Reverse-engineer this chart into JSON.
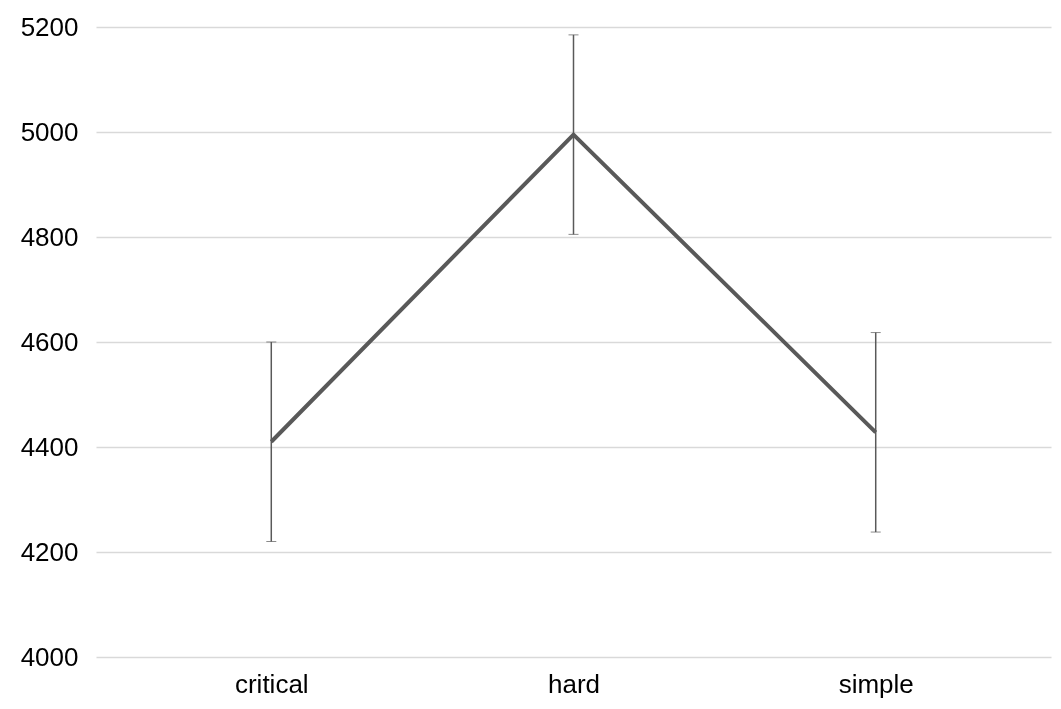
{
  "chart_data": {
    "type": "line",
    "categories": [
      "critical",
      "hard",
      "simple"
    ],
    "series": [
      {
        "color": "#595959",
        "values": [
          4410,
          4995,
          4428
        ],
        "errors": [
          190,
          190,
          190
        ]
      }
    ],
    "ylim": [
      4000,
      5200
    ],
    "yticks": [
      4000,
      4200,
      4400,
      4600,
      4800,
      5000,
      5200
    ],
    "grid": "y",
    "marker": "none",
    "line_style": "solid"
  }
}
